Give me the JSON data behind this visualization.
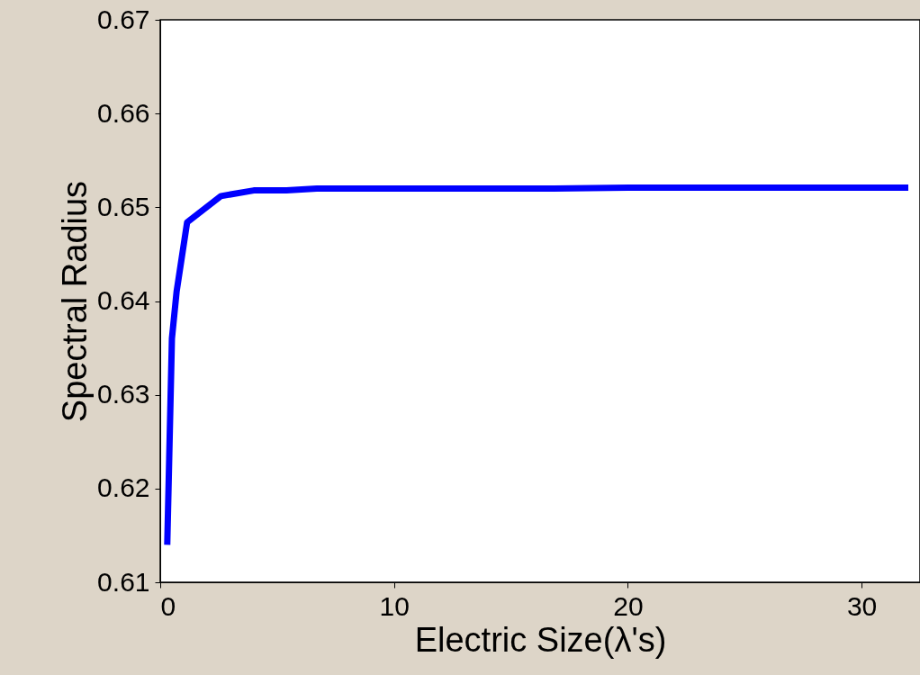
{
  "chart_data": {
    "type": "line",
    "xlabel": "Electric Size(λ's)",
    "ylabel": "Spectral Radius",
    "x": [
      0.3,
      0.5,
      0.7,
      1.15,
      2.6,
      4.0,
      5.4,
      6.7,
      16.85,
      20,
      32
    ],
    "series": [
      {
        "color": "#0000ff",
        "values": [
          0.614,
          0.636,
          0.641,
          0.6484,
          0.6512,
          0.6518,
          0.6518,
          0.652,
          0.652,
          0.6521,
          0.6521
        ]
      }
    ],
    "xlim": [
      0,
      32.5
    ],
    "xticks": [
      0,
      10,
      20,
      30
    ],
    "ylim": [
      0.61,
      0.67
    ],
    "yticks": [
      0.61,
      0.62,
      0.63,
      0.64,
      0.65,
      0.66,
      0.67
    ],
    "grid": false,
    "legend": false,
    "marker": "none",
    "line_style": "solid"
  }
}
